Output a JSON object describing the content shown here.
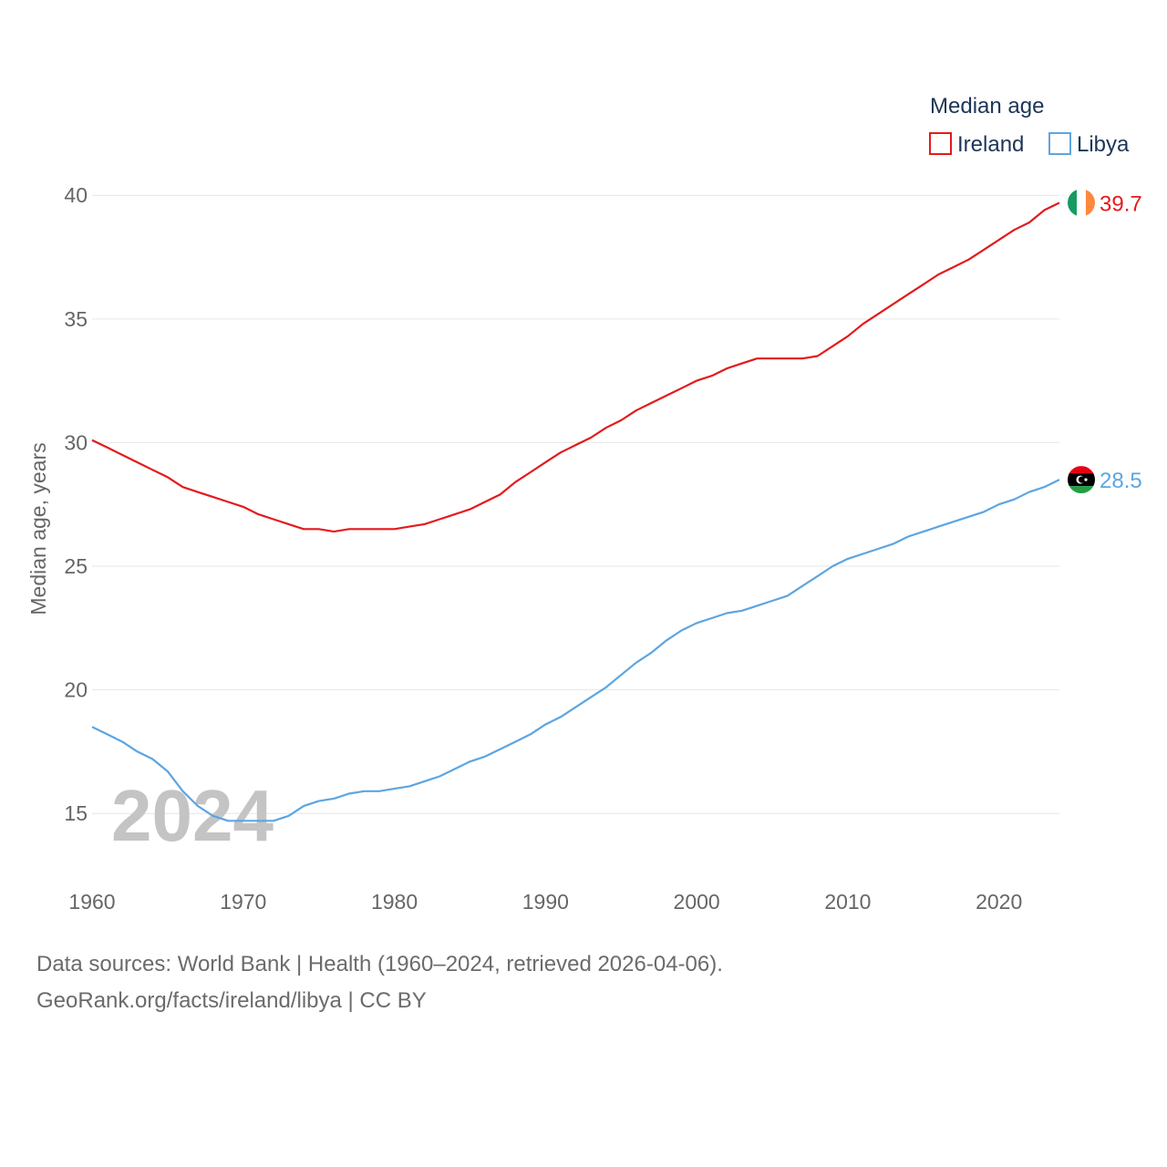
{
  "chart_data": {
    "type": "line",
    "title": "",
    "ylabel": "Median age, years",
    "xlabel": "",
    "xlim": [
      1960,
      2024
    ],
    "ylim": [
      12.5,
      42
    ],
    "x_ticks": [
      1960,
      1970,
      1980,
      1990,
      2000,
      2010,
      2020
    ],
    "y_ticks": [
      15,
      20,
      25,
      30,
      35,
      40
    ],
    "grid": true,
    "legend_title": "Median age",
    "legend_position": "top-right",
    "year_watermark": "2024",
    "x": [
      1960,
      1961,
      1962,
      1963,
      1964,
      1965,
      1966,
      1967,
      1968,
      1969,
      1970,
      1971,
      1972,
      1973,
      1974,
      1975,
      1976,
      1977,
      1978,
      1979,
      1980,
      1981,
      1982,
      1983,
      1984,
      1985,
      1986,
      1987,
      1988,
      1989,
      1990,
      1991,
      1992,
      1993,
      1994,
      1995,
      1996,
      1997,
      1998,
      1999,
      2000,
      2001,
      2002,
      2003,
      2004,
      2005,
      2006,
      2007,
      2008,
      2009,
      2010,
      2011,
      2012,
      2013,
      2014,
      2015,
      2016,
      2017,
      2018,
      2019,
      2020,
      2021,
      2022,
      2023,
      2024
    ],
    "series": [
      {
        "name": "Ireland",
        "color": "#e31a1c",
        "end_label": "39.7",
        "flag": "ireland-flag",
        "values": [
          30.1,
          29.8,
          29.5,
          29.2,
          28.9,
          28.6,
          28.2,
          28.0,
          27.8,
          27.6,
          27.4,
          27.1,
          26.9,
          26.7,
          26.5,
          26.5,
          26.4,
          26.5,
          26.5,
          26.5,
          26.5,
          26.6,
          26.7,
          26.9,
          27.1,
          27.3,
          27.6,
          27.9,
          28.4,
          28.8,
          29.2,
          29.6,
          29.9,
          30.2,
          30.6,
          30.9,
          31.3,
          31.6,
          31.9,
          32.2,
          32.5,
          32.7,
          33.0,
          33.2,
          33.4,
          33.4,
          33.4,
          33.4,
          33.5,
          33.9,
          34.3,
          34.8,
          35.2,
          35.6,
          36.0,
          36.4,
          36.8,
          37.1,
          37.4,
          37.8,
          38.2,
          38.6,
          38.9,
          39.4,
          39.7
        ]
      },
      {
        "name": "Libya",
        "color": "#5da5e0",
        "end_label": "28.5",
        "flag": "libya-flag",
        "values": [
          18.5,
          18.2,
          17.9,
          17.5,
          17.2,
          16.7,
          15.9,
          15.3,
          14.9,
          14.7,
          14.7,
          14.7,
          14.7,
          14.9,
          15.3,
          15.5,
          15.6,
          15.8,
          15.9,
          15.9,
          16.0,
          16.1,
          16.3,
          16.5,
          16.8,
          17.1,
          17.3,
          17.6,
          17.9,
          18.2,
          18.6,
          18.9,
          19.3,
          19.7,
          20.1,
          20.6,
          21.1,
          21.5,
          22.0,
          22.4,
          22.7,
          22.9,
          23.1,
          23.2,
          23.4,
          23.6,
          23.8,
          24.2,
          24.6,
          25.0,
          25.3,
          25.5,
          25.7,
          25.9,
          26.2,
          26.4,
          26.6,
          26.8,
          27.0,
          27.2,
          27.5,
          27.7,
          28.0,
          28.2,
          28.5
        ]
      }
    ]
  },
  "footer": {
    "sources": "Data sources: World Bank | Health (1960–2024, retrieved 2026-04-06).",
    "attribution": "GeoRank.org/facts/ireland/libya | CC BY"
  }
}
